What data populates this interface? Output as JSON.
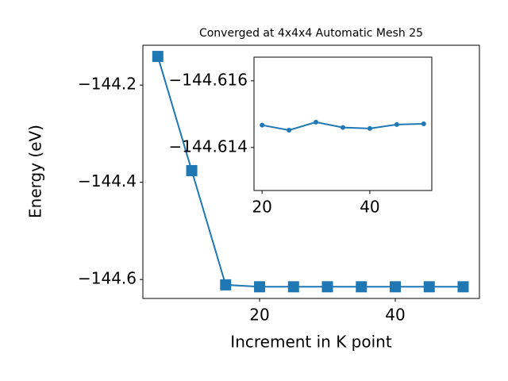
{
  "chart_data": [
    {
      "type": "line",
      "title": "Converged at 4x4x4 Automatic Mesh 25",
      "x_label": "Increment in K point",
      "y_label": "Energy (eV)",
      "x": [
        5,
        10,
        15,
        20,
        25,
        30,
        35,
        40,
        45,
        50
      ],
      "series": [
        {
          "color": "#1f77b4",
          "marker": "square",
          "values": [
            -144.141,
            -144.376,
            -144.611,
            -144.615,
            -144.615,
            -144.615,
            -144.615,
            -144.615,
            -144.615,
            -144.615
          ]
        }
      ],
      "xlim": [
        2.8,
        52.4
      ],
      "ylim": [
        -144.639,
        -144.118
      ],
      "xticks": [
        20,
        40
      ],
      "yticks": [
        {
          "value": -144.6,
          "label": "−144.6"
        },
        {
          "value": -144.4,
          "label": "−144.4"
        },
        {
          "value": -144.2,
          "label": "−144.2"
        }
      ]
    },
    {
      "type": "line",
      "x": [
        20,
        25,
        30,
        35,
        40,
        45,
        50
      ],
      "series": [
        {
          "color": "#1f77b4",
          "marker": "circle",
          "values": [
            -144.61467,
            -144.61452,
            -144.61476,
            -144.6146,
            -144.61457,
            -144.61469,
            -144.61471
          ]
        }
      ],
      "xlim": [
        18.5,
        51.5
      ],
      "ylim": [
        -144.61271,
        -144.61671
      ],
      "xticks": [
        20,
        40
      ],
      "yticks": [
        {
          "value": -144.614,
          "label": "−144.614"
        },
        {
          "value": -144.616,
          "label": "−144.616"
        }
      ]
    }
  ]
}
